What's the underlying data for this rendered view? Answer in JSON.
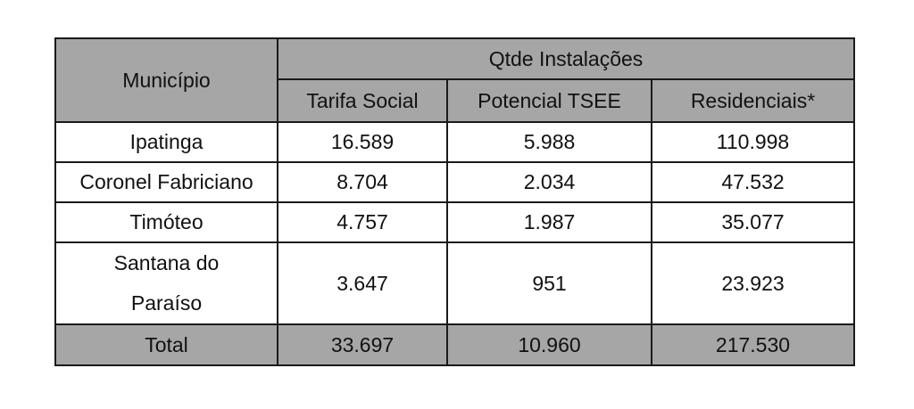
{
  "table": {
    "header": {
      "municipio": "Município",
      "group": "Qtde Instalações",
      "col_tarifa": "Tarifa Social",
      "col_potencial": "Potencial TSEE",
      "col_residenciais": "Residenciais*"
    },
    "rows": [
      {
        "name": "Ipatinga",
        "tarifa": "16.589",
        "potencial": "5.988",
        "residenciais": "110.998"
      },
      {
        "name": "Coronel Fabriciano",
        "tarifa": "8.704",
        "potencial": "2.034",
        "residenciais": "47.532"
      },
      {
        "name": "Timóteo",
        "tarifa": "4.757",
        "potencial": "1.987",
        "residenciais": "35.077"
      },
      {
        "name_line1": "Santana do",
        "name_line2": "Paraíso",
        "tarifa": "3.647",
        "potencial": "951",
        "residenciais": "23.923"
      }
    ],
    "total": {
      "name": "Total",
      "tarifa": "33.697",
      "potencial": "10.960",
      "residenciais": "217.530"
    },
    "colors": {
      "header_bg": "#a6a6a6",
      "border": "#1a1a1a"
    }
  }
}
